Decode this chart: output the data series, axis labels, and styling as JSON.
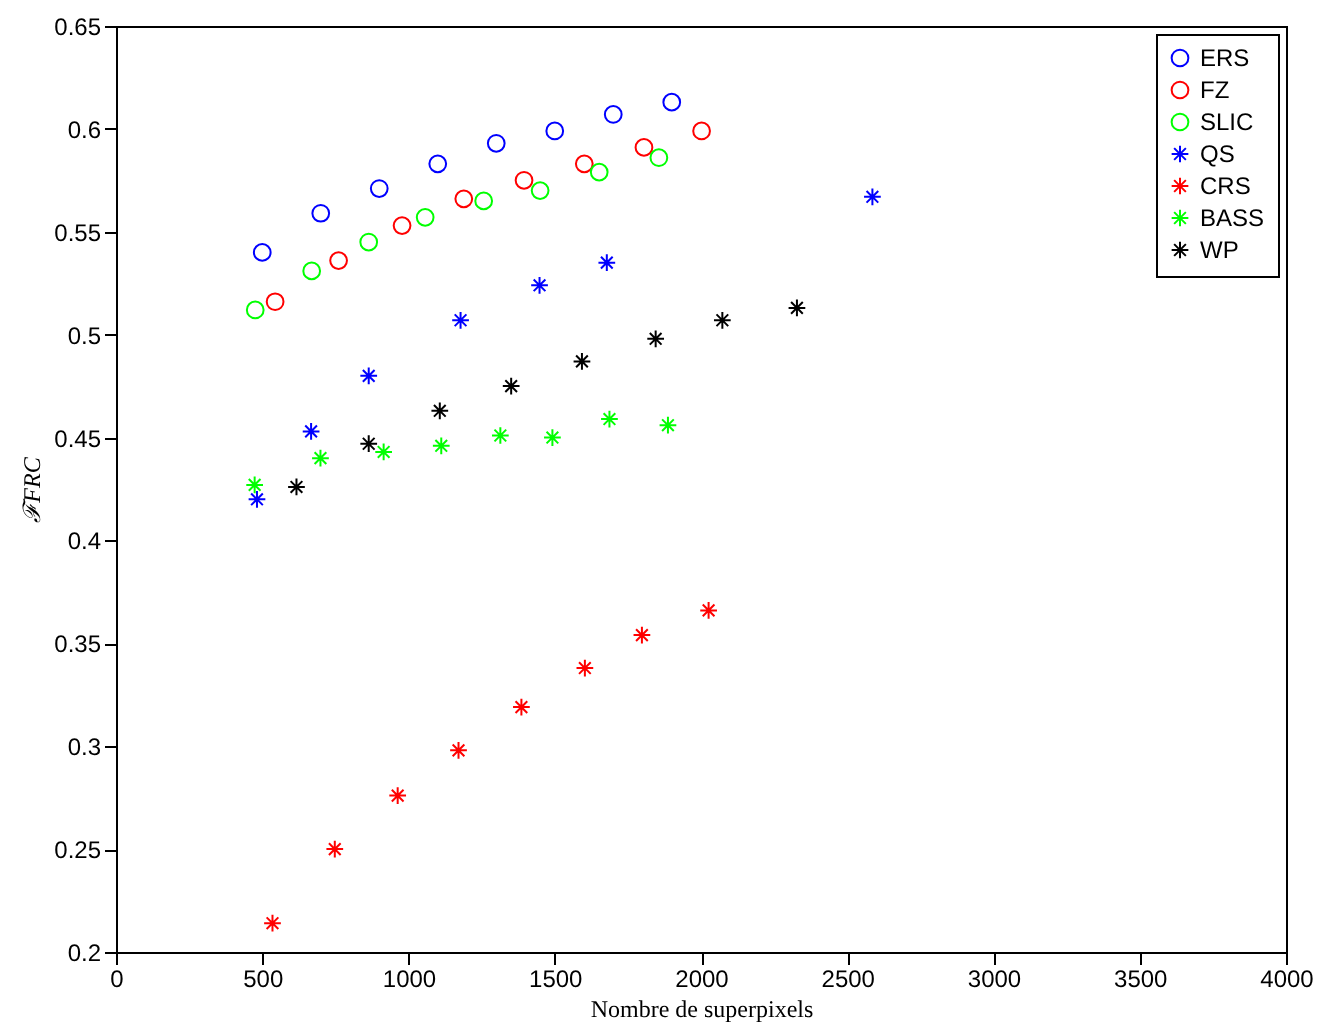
{
  "chart_data": {
    "type": "scatter",
    "xlabel": "Nombre de superpixels",
    "ylabel": "ℱFRC",
    "xlim": [
      0,
      4000
    ],
    "xticks": [
      0,
      500,
      1000,
      1500,
      2000,
      2500,
      3000,
      3500,
      4000
    ],
    "ylim": [
      0.2,
      0.65
    ],
    "yticks": [
      0.2,
      0.25,
      0.3,
      0.35,
      0.4,
      0.45,
      0.5,
      0.55,
      0.6,
      0.65
    ],
    "grid": false,
    "legend": "top right",
    "series": [
      {
        "name": "ERS",
        "color": "#0000ff",
        "marker": "circle",
        "x": [
          500,
          700,
          900,
          1100,
          1300,
          1500,
          1700,
          1900
        ],
        "values": [
          0.54,
          0.559,
          0.571,
          0.583,
          0.593,
          0.599,
          0.607,
          0.613
        ]
      },
      {
        "name": "FZ",
        "color": "#ff0000",
        "marker": "circle",
        "x": [
          544,
          761,
          978,
          1189,
          1395,
          1601,
          1805,
          2002
        ],
        "values": [
          0.516,
          0.536,
          0.553,
          0.566,
          0.575,
          0.583,
          0.591,
          0.599
        ]
      },
      {
        "name": "SLIC",
        "color": "#00ff00",
        "marker": "circle",
        "x": [
          476,
          669,
          864,
          1057,
          1257,
          1450,
          1652,
          1856
        ],
        "values": [
          0.512,
          0.531,
          0.545,
          0.557,
          0.565,
          0.57,
          0.579,
          0.586
        ]
      },
      {
        "name": "QS",
        "color": "#0000ff",
        "marker": "cross",
        "x": [
          482,
          667,
          864,
          1178,
          1448,
          1678,
          2586
        ],
        "values": [
          0.42,
          0.453,
          0.48,
          0.507,
          0.524,
          0.535,
          0.567
        ]
      },
      {
        "name": "CRS",
        "color": "#ff0000",
        "marker": "cross",
        "x": [
          535,
          748,
          963,
          1171,
          1386,
          1603,
          1798,
          2026
        ],
        "values": [
          0.214,
          0.25,
          0.276,
          0.298,
          0.319,
          0.338,
          0.354,
          0.366
        ]
      },
      {
        "name": "BASS",
        "color": "#00ff00",
        "marker": "cross",
        "x": [
          474,
          699,
          915,
          1112,
          1314,
          1492,
          1687,
          1887
        ],
        "values": [
          0.427,
          0.44,
          0.443,
          0.446,
          0.451,
          0.45,
          0.459,
          0.456
        ]
      },
      {
        "name": "WP",
        "color": "#000000",
        "marker": "cross",
        "x": [
          617,
          864,
          1107,
          1351,
          1593,
          1845,
          2073,
          2328
        ],
        "values": [
          0.426,
          0.447,
          0.463,
          0.475,
          0.487,
          0.498,
          0.507,
          0.513
        ]
      }
    ]
  }
}
